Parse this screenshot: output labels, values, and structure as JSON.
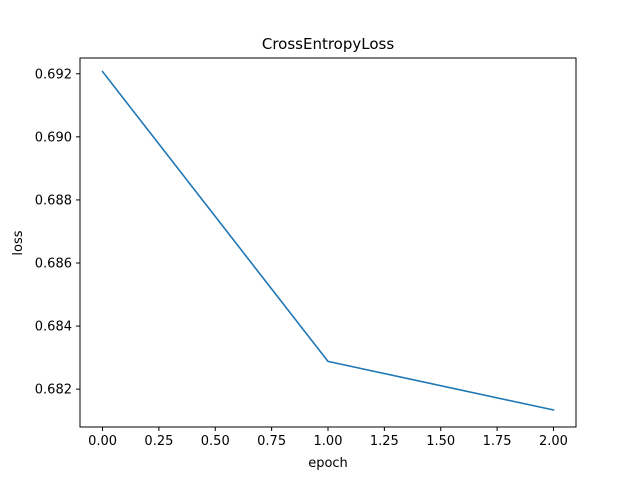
{
  "chart_data": {
    "type": "line",
    "title": "CrossEntropyLoss",
    "xlabel": "epoch",
    "ylabel": "loss",
    "xlim": [
      -0.1,
      2.1
    ],
    "ylim": [
      0.6808,
      0.6925
    ],
    "grid": false,
    "x_ticks": [
      0.0,
      0.25,
      0.5,
      0.75,
      1.0,
      1.25,
      1.5,
      1.75,
      2.0
    ],
    "x_tick_labels": [
      "0.00",
      "0.25",
      "0.50",
      "0.75",
      "1.00",
      "1.25",
      "1.50",
      "1.75",
      "2.00"
    ],
    "y_ticks": [
      0.682,
      0.684,
      0.686,
      0.688,
      0.69,
      0.692
    ],
    "y_tick_labels": [
      "0.682",
      "0.684",
      "0.686",
      "0.688",
      "0.690",
      "0.692"
    ],
    "series": [
      {
        "color": "#1f77b4",
        "x": [
          0.0,
          1.0,
          2.0
        ],
        "values": [
          0.69207,
          0.68288,
          0.68134
        ]
      }
    ]
  }
}
